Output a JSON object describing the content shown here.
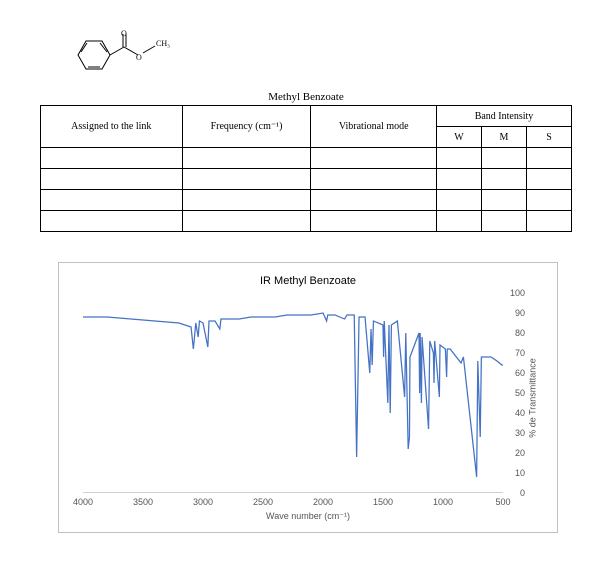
{
  "molecule_label": "CH₃",
  "table": {
    "title": "Methyl Benzoate",
    "columns": [
      "Assigned to the link",
      "Frequency (cm⁻¹)",
      "Vibrational mode"
    ],
    "intensity_header": "Band Intensity",
    "intensity_cols": [
      "W",
      "M",
      "S"
    ],
    "rows": [
      [
        "",
        "",
        "",
        "",
        "",
        ""
      ],
      [
        "",
        "",
        "",
        "",
        "",
        ""
      ],
      [
        "",
        "",
        "",
        "",
        "",
        ""
      ],
      [
        "",
        "",
        "",
        "",
        "",
        ""
      ]
    ]
  },
  "chart": {
    "title": "IR Methyl Benzoate",
    "xlabel": "Wave number (cm⁻¹)",
    "ylabel": "% de Transmittance",
    "xlim": [
      4000,
      500
    ],
    "ylim": [
      0,
      100
    ],
    "xticks": [
      4000,
      3500,
      3000,
      2500,
      2000,
      1500,
      1000,
      500
    ],
    "yticks": [
      0,
      10,
      20,
      30,
      40,
      50,
      60,
      70,
      80,
      90,
      100
    ],
    "line_color": "#4472c4",
    "line_width": 1.2,
    "grid_color": "#d0d0d0",
    "background_color": "#ffffff",
    "font_family": "Arial",
    "tick_fontsize": 9,
    "series": [
      [
        4000,
        88
      ],
      [
        3800,
        88
      ],
      [
        3600,
        87
      ],
      [
        3400,
        86
      ],
      [
        3200,
        85
      ],
      [
        3100,
        83
      ],
      [
        3080,
        72
      ],
      [
        3060,
        85
      ],
      [
        3040,
        78
      ],
      [
        3030,
        86
      ],
      [
        3000,
        85
      ],
      [
        2960,
        73
      ],
      [
        2950,
        86
      ],
      [
        2900,
        86
      ],
      [
        2860,
        82
      ],
      [
        2850,
        87
      ],
      [
        2800,
        87
      ],
      [
        2700,
        87
      ],
      [
        2600,
        88
      ],
      [
        2500,
        88
      ],
      [
        2400,
        88
      ],
      [
        2300,
        89
      ],
      [
        2200,
        89
      ],
      [
        2100,
        89
      ],
      [
        2000,
        90
      ],
      [
        1970,
        86
      ],
      [
        1960,
        89
      ],
      [
        1900,
        89
      ],
      [
        1820,
        87
      ],
      [
        1800,
        89
      ],
      [
        1740,
        89
      ],
      [
        1720,
        18
      ],
      [
        1700,
        88
      ],
      [
        1650,
        88
      ],
      [
        1610,
        60
      ],
      [
        1600,
        82
      ],
      [
        1590,
        64
      ],
      [
        1580,
        86
      ],
      [
        1500,
        84
      ],
      [
        1495,
        68
      ],
      [
        1490,
        86
      ],
      [
        1460,
        45
      ],
      [
        1450,
        84
      ],
      [
        1440,
        40
      ],
      [
        1430,
        84
      ],
      [
        1380,
        86
      ],
      [
        1320,
        48
      ],
      [
        1310,
        80
      ],
      [
        1290,
        22
      ],
      [
        1280,
        28
      ],
      [
        1275,
        68
      ],
      [
        1200,
        80
      ],
      [
        1195,
        50
      ],
      [
        1190,
        80
      ],
      [
        1180,
        45
      ],
      [
        1175,
        78
      ],
      [
        1120,
        32
      ],
      [
        1110,
        76
      ],
      [
        1080,
        70
      ],
      [
        1075,
        55
      ],
      [
        1070,
        76
      ],
      [
        1030,
        48
      ],
      [
        1025,
        74
      ],
      [
        980,
        72
      ],
      [
        970,
        58
      ],
      [
        965,
        72
      ],
      [
        940,
        72
      ],
      [
        850,
        65
      ],
      [
        830,
        68
      ],
      [
        720,
        8
      ],
      [
        710,
        66
      ],
      [
        690,
        28
      ],
      [
        680,
        68
      ],
      [
        600,
        68
      ],
      [
        550,
        66
      ],
      [
        510,
        64
      ],
      [
        500,
        64
      ]
    ]
  }
}
